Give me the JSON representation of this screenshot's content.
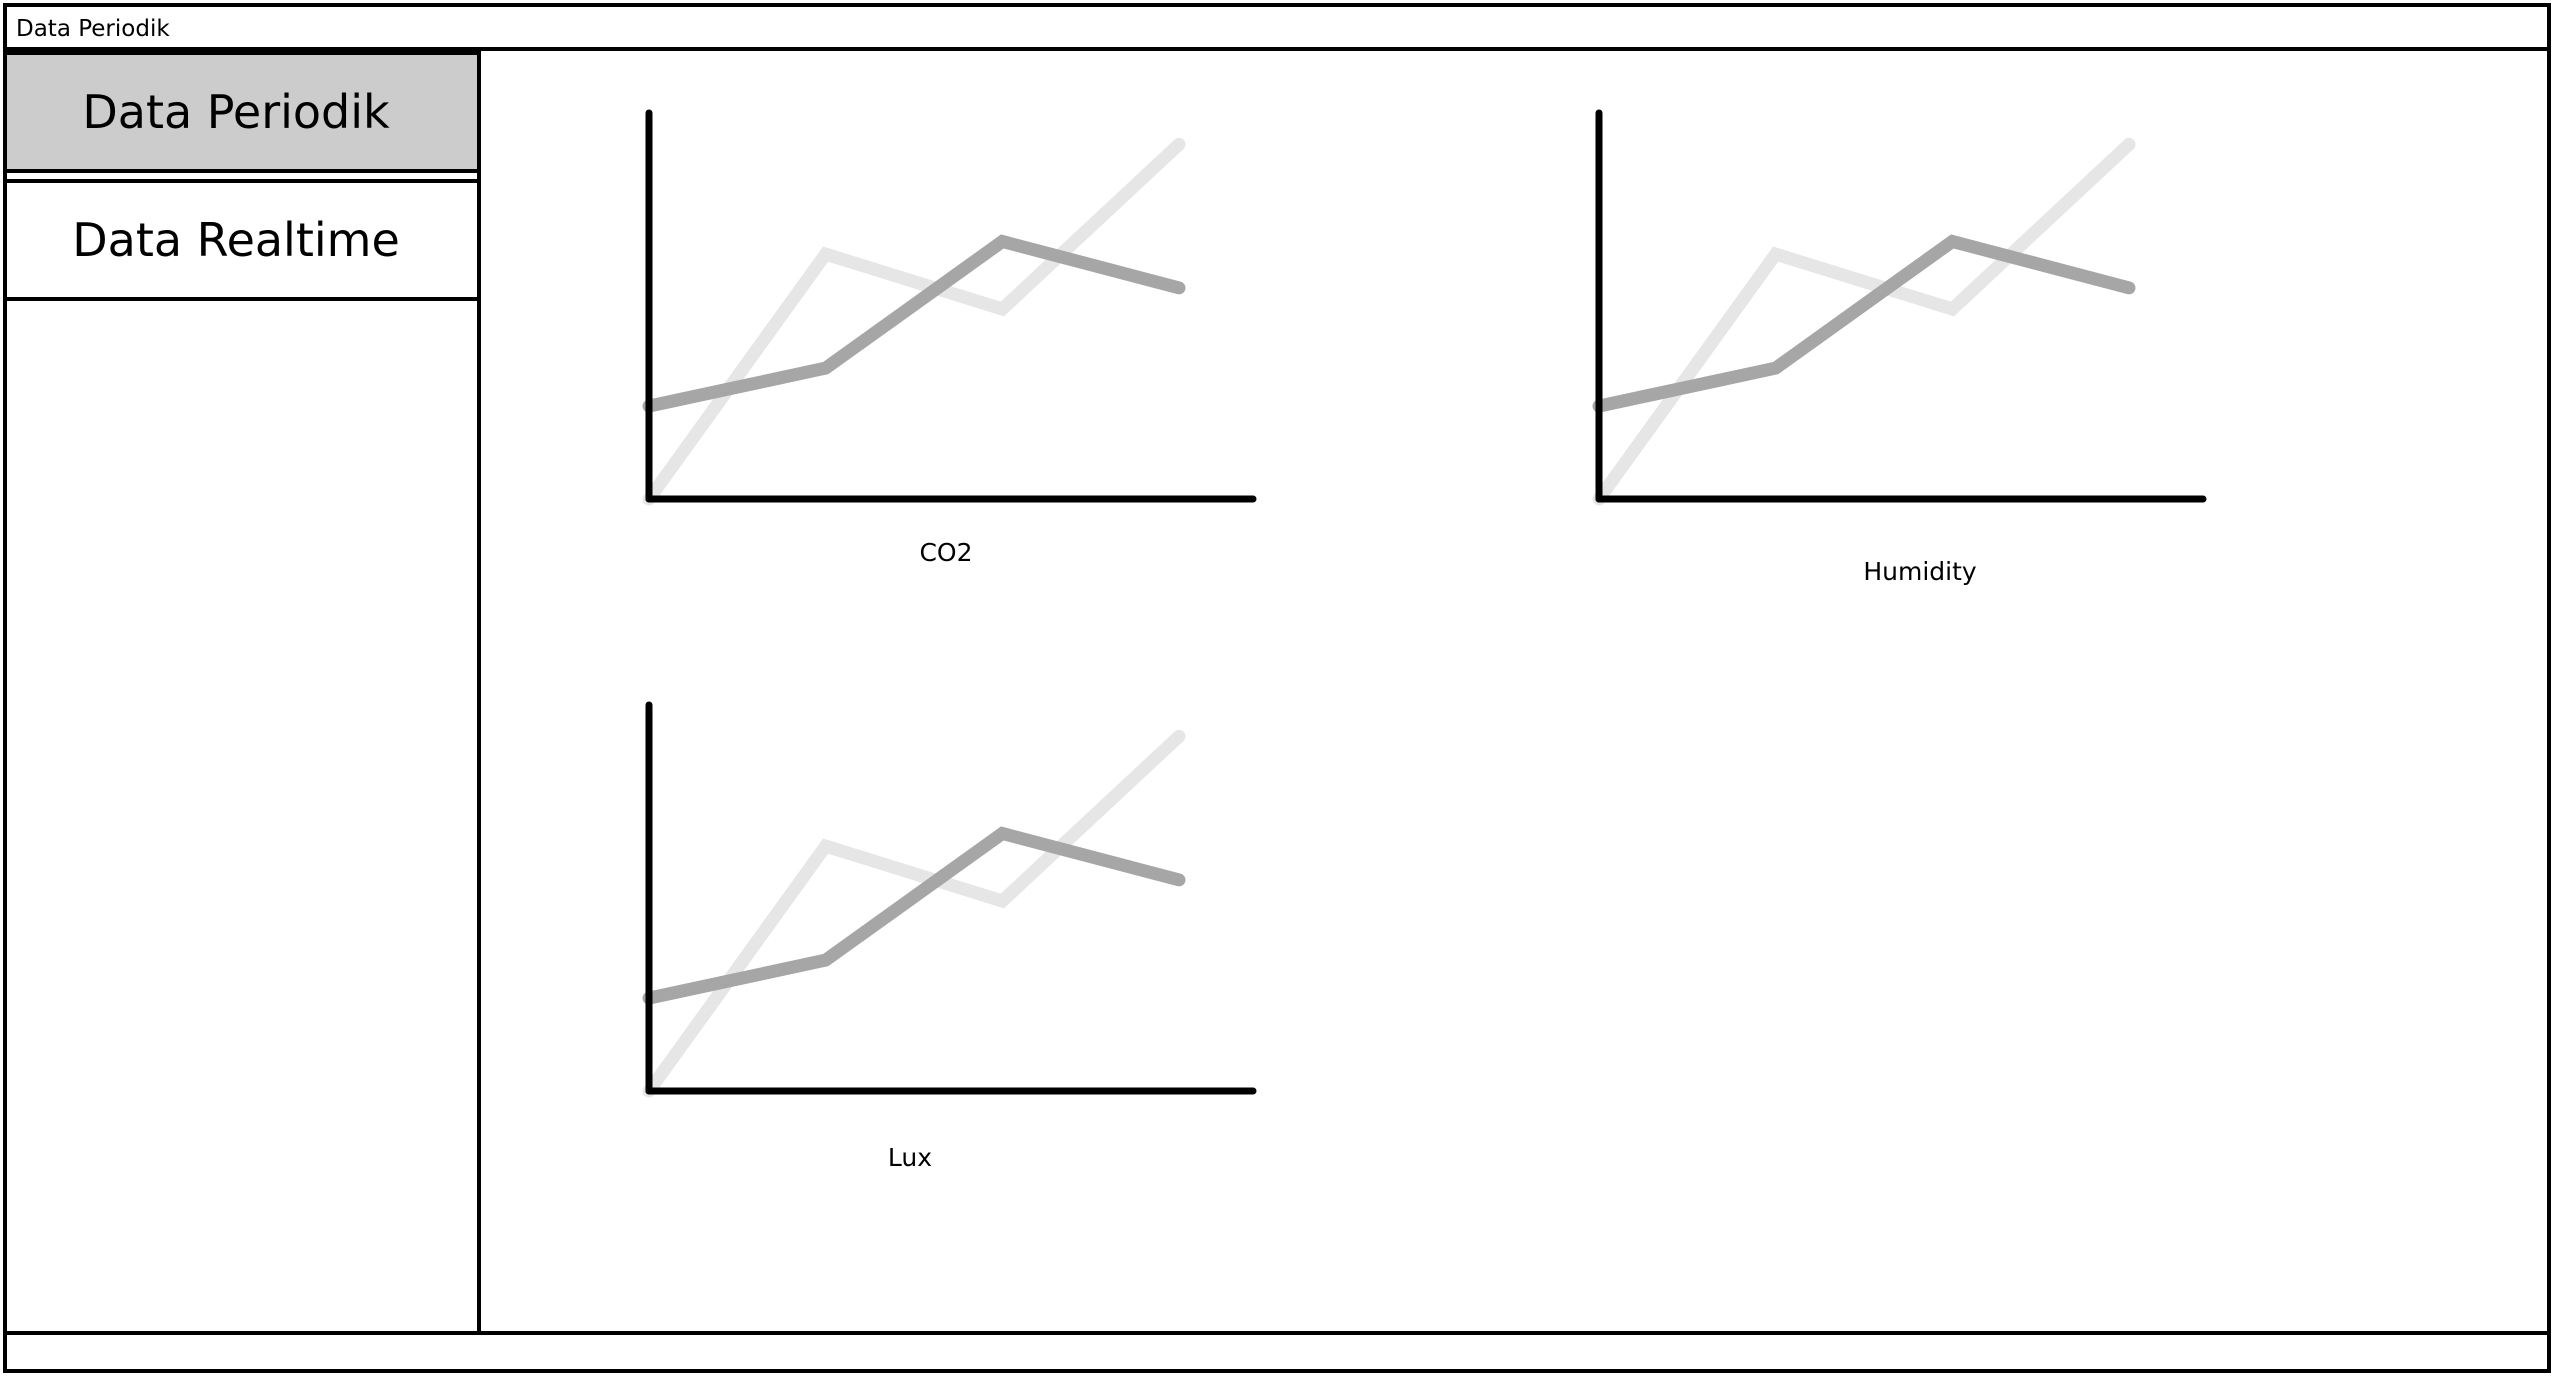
{
  "window": {
    "title": "Data Periodik"
  },
  "sidebar": {
    "items": [
      {
        "label": "Data Periodik",
        "active": true
      },
      {
        "label": "Data Realtime",
        "active": false
      }
    ]
  },
  "colors": {
    "active_tab": "#cccccc",
    "axis": "#000000",
    "series_dark": "#a6a6a6",
    "series_light": "#e6e6e6"
  },
  "chart_data": [
    {
      "type": "line",
      "title": "CO2",
      "x": [
        0,
        1,
        2,
        3
      ],
      "series": [
        {
          "values": [
            0,
            5.8,
            4.5,
            8.4
          ],
          "color": "#e6e6e6"
        },
        {
          "values": [
            2.2,
            3.1,
            6.1,
            5.0
          ],
          "color": "#a6a6a6"
        }
      ],
      "ylim": [
        0,
        9
      ],
      "grid": false
    },
    {
      "type": "line",
      "title": "Humidity",
      "x": [
        0,
        1,
        2,
        3
      ],
      "series": [
        {
          "values": [
            0,
            5.8,
            4.5,
            8.4
          ],
          "color": "#e6e6e6"
        },
        {
          "values": [
            2.2,
            3.1,
            6.1,
            5.0
          ],
          "color": "#a6a6a6"
        }
      ],
      "ylim": [
        0,
        9
      ],
      "grid": false
    },
    {
      "type": "line",
      "title": "Lux",
      "x": [
        0,
        1,
        2,
        3
      ],
      "series": [
        {
          "values": [
            0,
            5.8,
            4.5,
            8.4
          ],
          "color": "#e6e6e6"
        },
        {
          "values": [
            2.2,
            3.1,
            6.1,
            5.0
          ],
          "color": "#a6a6a6"
        }
      ],
      "ylim": [
        0,
        9
      ],
      "grid": false
    }
  ]
}
